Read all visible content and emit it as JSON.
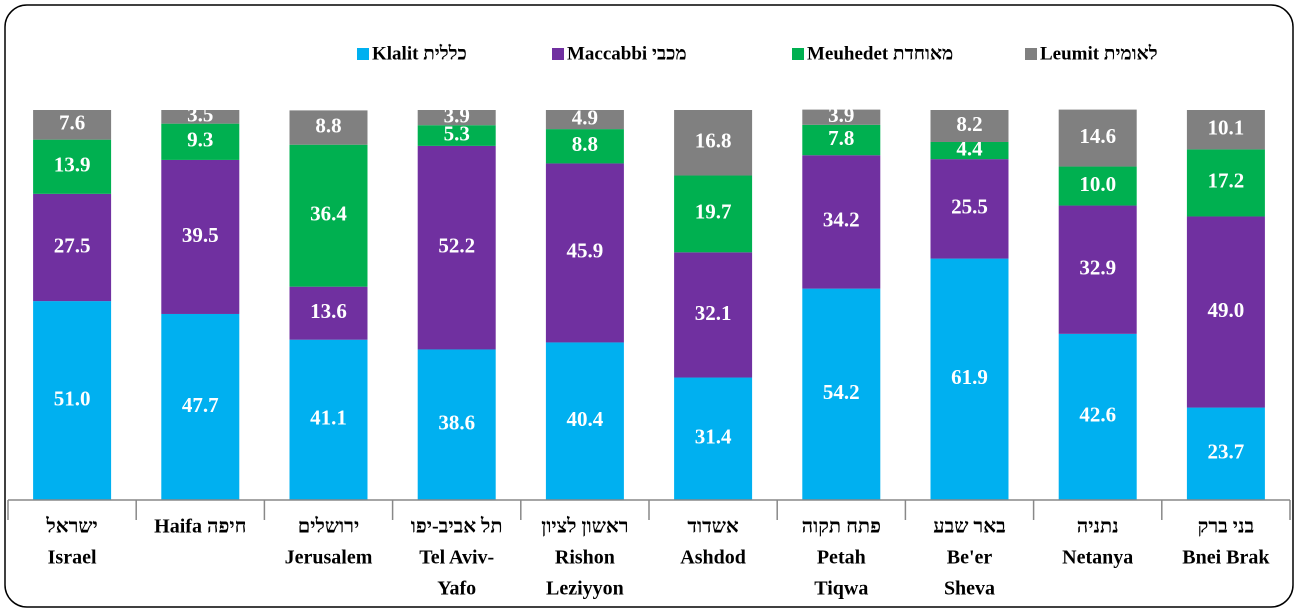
{
  "chart_data": {
    "type": "stacked_bar",
    "categories": [
      [
        "ישראל",
        "Israel"
      ],
      [
        "Haifa  חיפה"
      ],
      [
        "ירושלים",
        "Jerusalem"
      ],
      [
        "תל אביב-יפו",
        "Tel Aviv-",
        "Yafo"
      ],
      [
        "ראשון לציון",
        "Rishon",
        "Leziyyon"
      ],
      [
        "אשדוד",
        "Ashdod"
      ],
      [
        "פתח תקוה",
        "Petah",
        "Tiqwa"
      ],
      [
        "באר שבע",
        "Be'er",
        "Sheva"
      ],
      [
        "נתניה",
        "Netanya"
      ],
      [
        "בני ברק",
        "Bnei Brak"
      ]
    ],
    "series": [
      {
        "name": "Klalit כללית",
        "color": "#00b0f0",
        "values": [
          51.0,
          47.7,
          41.1,
          38.6,
          40.4,
          31.4,
          54.2,
          61.9,
          42.6,
          23.7
        ],
        "value_labels": [
          "51.0",
          "47.7",
          "41.1",
          "38.6",
          "40.4",
          "31.4",
          "54.2",
          "61.9",
          "42.6",
          "23.7"
        ]
      },
      {
        "name": "Maccabbi מכבי",
        "color": "#7030a0",
        "values": [
          27.5,
          39.5,
          13.6,
          52.2,
          45.9,
          32.1,
          34.2,
          25.5,
          32.9,
          49.0
        ],
        "value_labels": [
          "27.5",
          "39.5",
          "13.6",
          "52.2",
          "45.9",
          "32.1",
          "34.2",
          "25.5",
          "32.9",
          "49.0"
        ]
      },
      {
        "name": "Meuhedet מאוחדת",
        "color": "#00b050",
        "values": [
          13.9,
          9.3,
          36.4,
          5.3,
          8.8,
          19.7,
          7.8,
          4.4,
          10.0,
          17.2
        ],
        "value_labels": [
          "13.9",
          "9.3",
          "36.4",
          "5.3",
          "8.8",
          "19.7",
          "7.8",
          "4.4",
          "10.0",
          "17.2"
        ]
      },
      {
        "name": "Leumit לאומית",
        "color": "#808080",
        "values": [
          7.6,
          3.5,
          8.8,
          3.9,
          4.9,
          16.8,
          3.9,
          8.2,
          14.6,
          10.1
        ],
        "value_labels": [
          "7.6",
          "3.5",
          "8.8",
          "3.9",
          "4.9",
          "16.8",
          "3.9",
          "8.2",
          "14.6",
          "10.1"
        ]
      }
    ],
    "ylim": [
      0,
      100
    ]
  }
}
